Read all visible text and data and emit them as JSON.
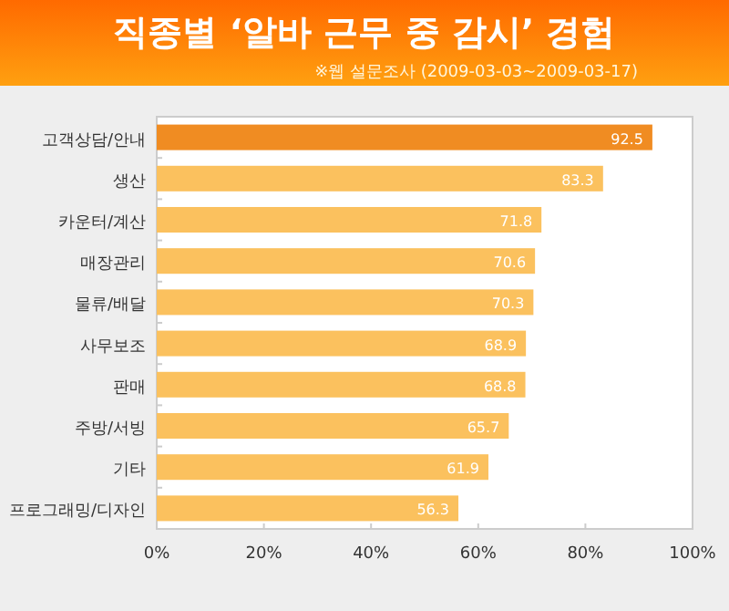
{
  "chart_data": {
    "type": "bar",
    "title": "직종별 ‘알바 근무 중 감시’ 경험",
    "subtitle": "※웹 설문조사 (2009-03-03~2009-03-17)",
    "orientation": "horizontal",
    "categories": [
      "고객상담/안내",
      "생산",
      "카운터/계산",
      "매장관리",
      "물류/배달",
      "사무보조",
      "판매",
      "주방/서빙",
      "기타",
      "프로그래밍/디자인"
    ],
    "values": [
      92.5,
      83.3,
      71.8,
      70.6,
      70.3,
      68.9,
      68.8,
      65.7,
      61.9,
      56.3
    ],
    "colors": [
      "#f08c22",
      "#fbc15e",
      "#fbc15e",
      "#fbc15e",
      "#fbc15e",
      "#fbc15e",
      "#fbc15e",
      "#fbc15e",
      "#fbc15e",
      "#fbc15e"
    ],
    "data_labels": true,
    "xlim": [
      0,
      100
    ],
    "xticks": [
      {
        "value": 0,
        "label": "0%"
      },
      {
        "value": 20,
        "label": "20%"
      },
      {
        "value": 40,
        "label": "40%"
      },
      {
        "value": 60,
        "label": "60%"
      },
      {
        "value": 80,
        "label": "80%"
      },
      {
        "value": 100,
        "label": "100%"
      }
    ]
  }
}
